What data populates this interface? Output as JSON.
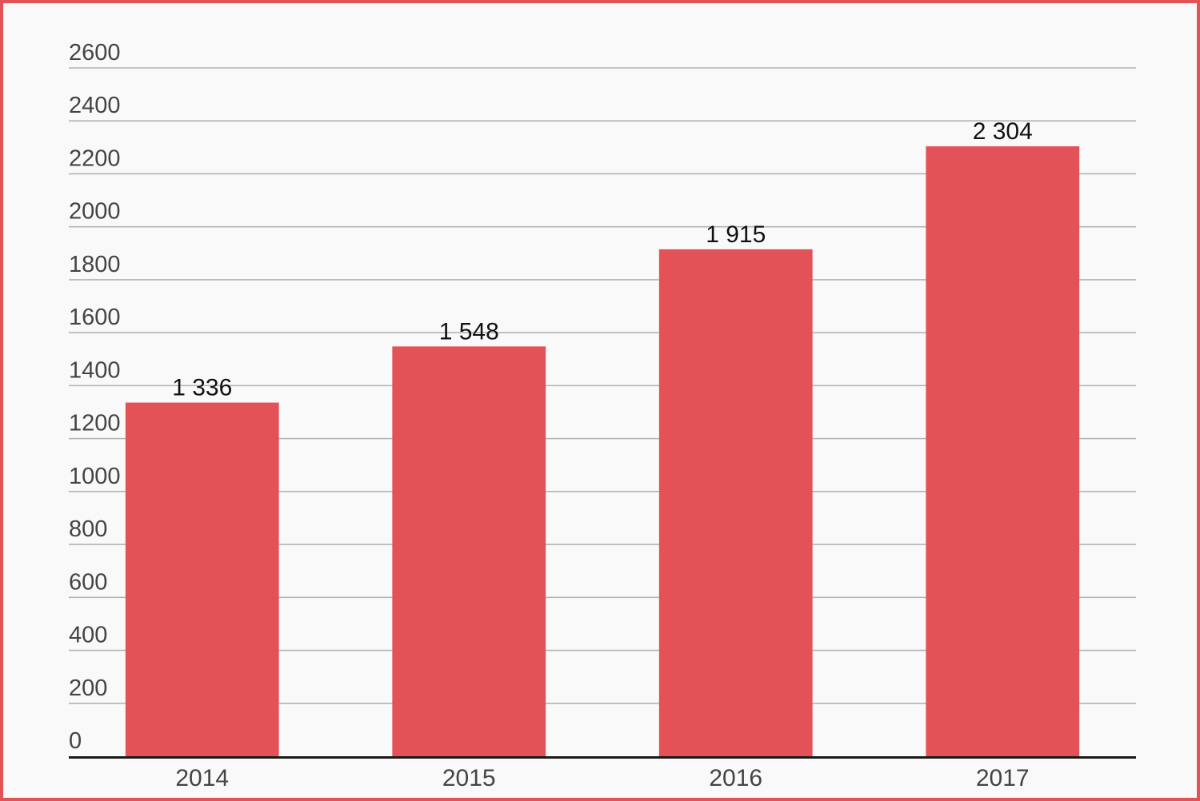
{
  "chart_data": {
    "type": "bar",
    "categories": [
      "2014",
      "2015",
      "2016",
      "2017"
    ],
    "values": [
      1336,
      1548,
      1915,
      2304
    ],
    "value_labels": [
      "1 336",
      "1 548",
      "1 915",
      "2 304"
    ],
    "y_ticks": [
      "0",
      "200",
      "400",
      "600",
      "800",
      "1000",
      "1200",
      "1400",
      "1600",
      "1800",
      "2000",
      "2200",
      "2400",
      "2600"
    ],
    "ylim": [
      0,
      2600
    ],
    "grid": true,
    "legend": "none",
    "bar_color": "#e35257",
    "frame_color": "#e35257"
  }
}
